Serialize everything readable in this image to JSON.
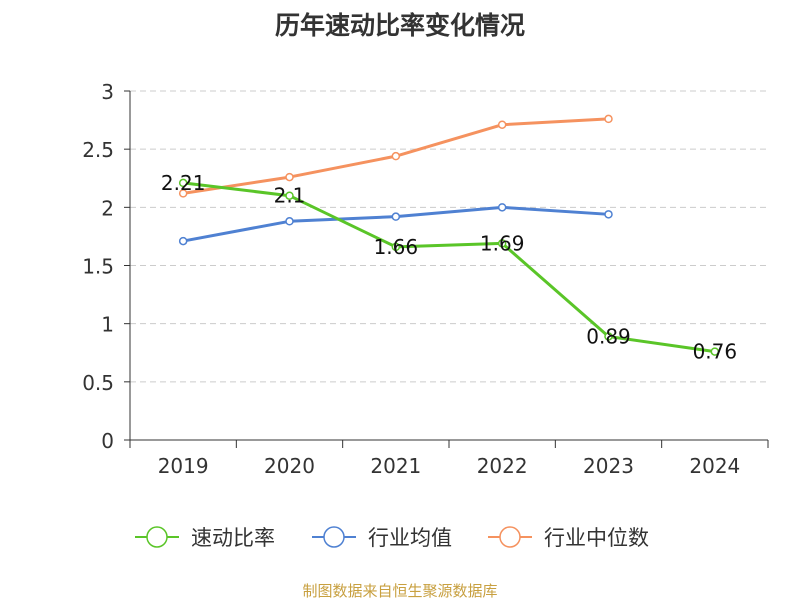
{
  "chart_data": {
    "type": "line",
    "title": "历年速动比率变化情况",
    "categories": [
      "2019",
      "2020",
      "2021",
      "2022",
      "2023",
      "2024"
    ],
    "ylim": [
      0,
      3
    ],
    "yticks": [
      "0",
      "0.5",
      "1",
      "1.5",
      "2",
      "2.5",
      "3"
    ],
    "grid": true,
    "legend_position": "bottom",
    "series": [
      {
        "name": "速动比率",
        "color": "#5ac528",
        "values": [
          2.21,
          2.1,
          1.66,
          1.69,
          0.89,
          0.76
        ],
        "labels": [
          "2.21",
          "2.1",
          "1.66",
          "1.69",
          "0.89",
          "0.76"
        ]
      },
      {
        "name": "行业均值",
        "color": "#4f81d2",
        "values": [
          1.71,
          1.88,
          1.92,
          2.0,
          1.94,
          null
        ]
      },
      {
        "name": "行业中位数",
        "color": "#f5925f",
        "values": [
          2.12,
          2.26,
          2.44,
          2.71,
          2.76,
          null
        ]
      }
    ]
  },
  "source": "制图数据来自恒生聚源数据库"
}
